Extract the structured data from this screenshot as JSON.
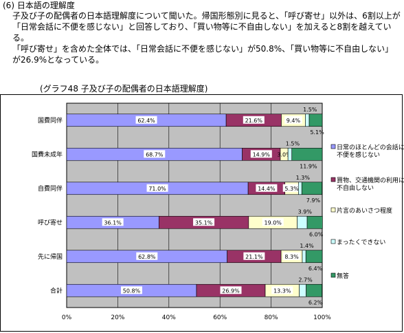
{
  "text": {
    "heading": "(6) 日本語の理解度",
    "paragraph1": "子及び子の配偶者の日本語理解度について聞いた。帰国形態別に見ると、「呼び寄せ」以外は、6割以上が「日常会話に不便を感じない」と回答しており、「買い物等に不自由しない」を加えると8割を越えている。",
    "paragraph2": "「呼び寄せ」を含めた全体では、「日常会話に不便を感じない」が50.8%、「買い物等に不自由しない」が26.9%となっている。",
    "graph_title": "(グラフ48  子及び子の配偶者の日本語理解度)"
  },
  "chart_data": {
    "type": "bar",
    "orientation": "horizontal",
    "stacked": true,
    "categories": [
      "国費同伴",
      "国費未成年",
      "自費同伴",
      "呼び寄せ",
      "先に帰国",
      "合計"
    ],
    "series": [
      {
        "name": "日常のほとんどの会話に不便を感じない",
        "color": "#9999ff",
        "values": [
          62.4,
          68.7,
          71.0,
          36.1,
          62.8,
          50.8
        ]
      },
      {
        "name": "買物、交通機関の利用に不自由しない",
        "color": "#993366",
        "values": [
          21.6,
          14.9,
          14.4,
          35.1,
          21.1,
          26.9
        ]
      },
      {
        "name": "片言のあいさつ程度",
        "color": "#ffffcc",
        "values": [
          9.4,
          3.0,
          5.3,
          19.0,
          8.3,
          13.3
        ]
      },
      {
        "name": "まったくできない",
        "color": "#ccffff",
        "values": [
          1.5,
          1.5,
          1.3,
          3.9,
          1.4,
          2.7
        ]
      },
      {
        "name": "無答",
        "color": "#339966",
        "values": [
          5.1,
          11.9,
          7.9,
          6.0,
          6.4,
          6.2
        ]
      }
    ],
    "data_labels": [
      [
        "62.4%",
        "21.6%",
        "9.4%",
        "1.5%",
        "5.1%"
      ],
      [
        "68.7%",
        "14.9%",
        "3.0%",
        "1.5%",
        "11.9%"
      ],
      [
        "71.0%",
        "14.4%",
        "5.3%",
        "1.3%",
        "7.9%"
      ],
      [
        "36.1%",
        "35.1%",
        "19.0%",
        "3.9%",
        "6.0%"
      ],
      [
        "62.8%",
        "21.1%",
        "8.3%",
        "1.4%",
        "6.4%"
      ],
      [
        "50.8%",
        "26.9%",
        "13.3%",
        "2.7%",
        "6.2%"
      ]
    ],
    "x_ticks": [
      "0%",
      "20%",
      "40%",
      "60%",
      "80%",
      "100%"
    ],
    "xlim": [
      0,
      100
    ],
    "plot_background": "#c0c0c0",
    "grid": true,
    "legend_position": "right"
  }
}
